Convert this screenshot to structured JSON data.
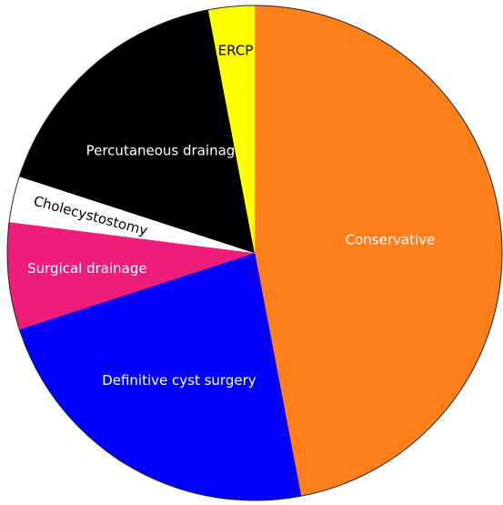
{
  "chart_data": {
    "type": "pie",
    "categories": [
      "Conservative",
      "Definitive cyst surgery",
      "Surgical drainage",
      "Cholecystostomy",
      "Percutaneous drainage",
      "ERCP"
    ],
    "values": [
      47,
      23,
      7,
      3,
      17,
      3
    ],
    "colors": [
      "#ff7f1a",
      "#0000ff",
      "#f01e78",
      "#ffffff",
      "#000000",
      "#ffff00"
    ],
    "start_angle": 0,
    "direction": "clockwise"
  }
}
